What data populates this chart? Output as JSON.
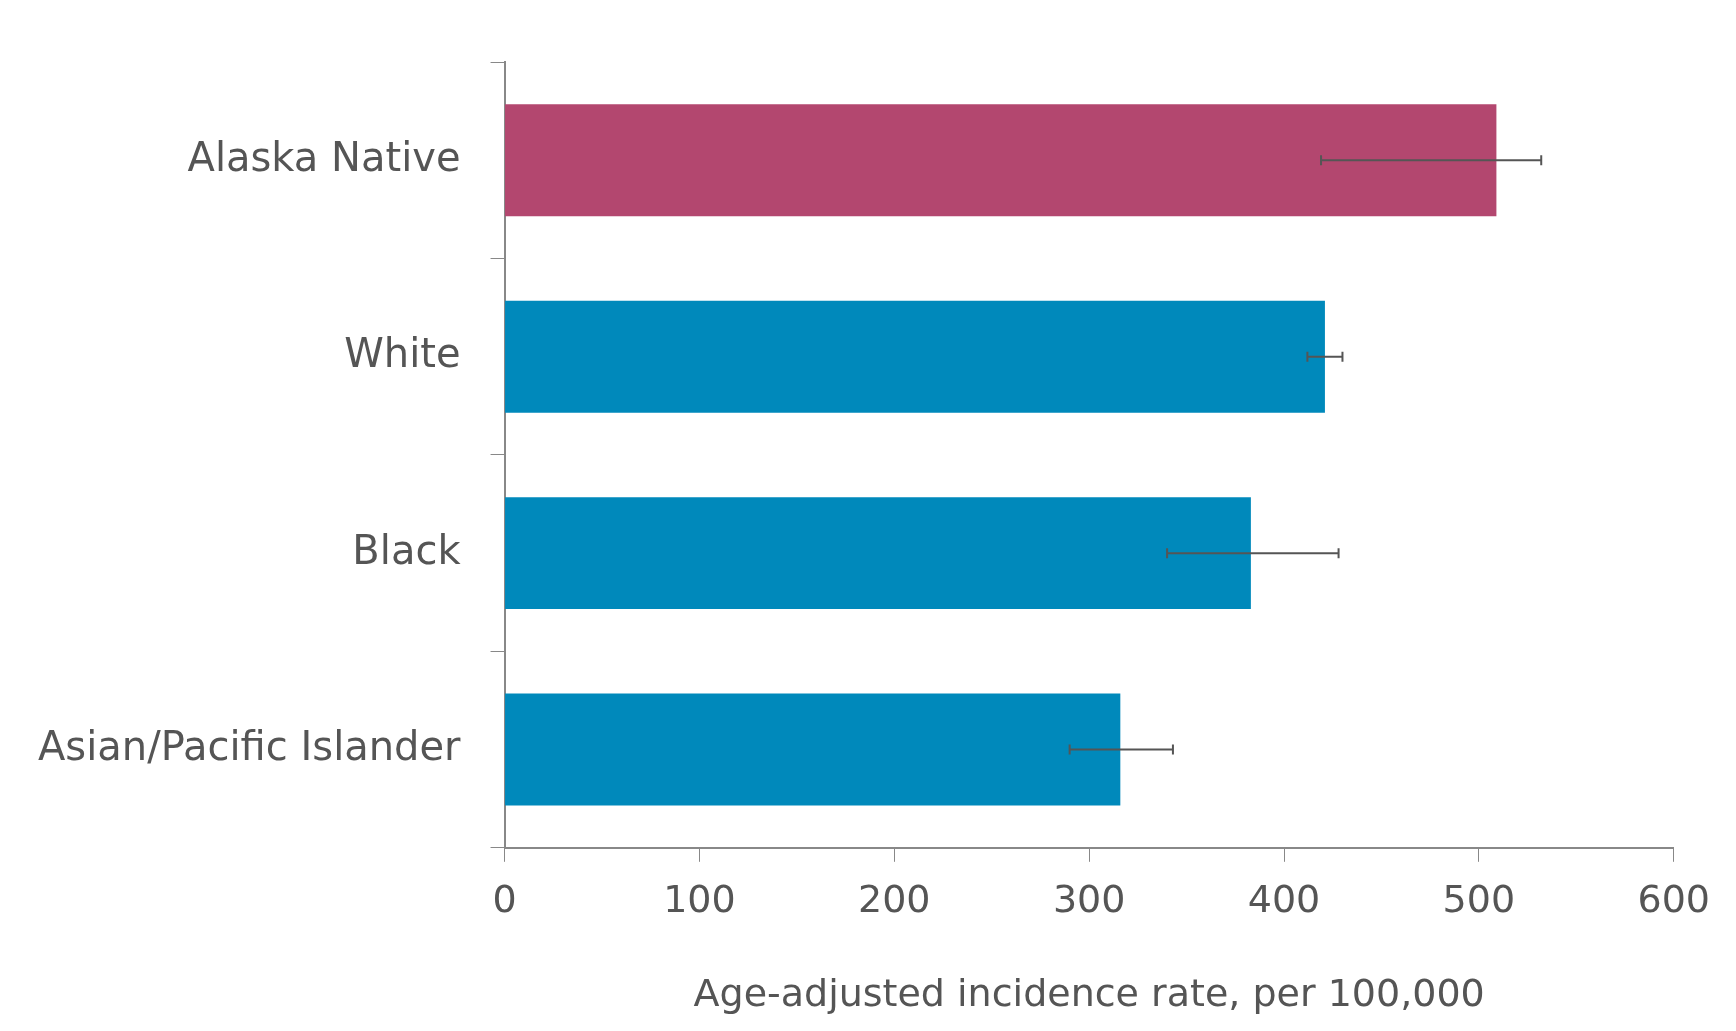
{
  "chart_data": {
    "type": "bar",
    "orientation": "horizontal",
    "xlabel": "Age-adjusted incidence rate, per 100,000",
    "categories": [
      "Alaska Native",
      "White",
      "Black",
      "Asian/Pacific Islander"
    ],
    "values": [
      509,
      421,
      383,
      316
    ],
    "colors": [
      "#b3476f",
      "#0089bb",
      "#0089bb",
      "#0089bb"
    ],
    "errors": [
      [
        419,
        532
      ],
      [
        412,
        430
      ],
      [
        340,
        428
      ],
      [
        290,
        343
      ]
    ],
    "xlim": [
      0,
      600
    ],
    "xticks": [
      0,
      100,
      200,
      300,
      400,
      500,
      600
    ],
    "grid": false
  }
}
